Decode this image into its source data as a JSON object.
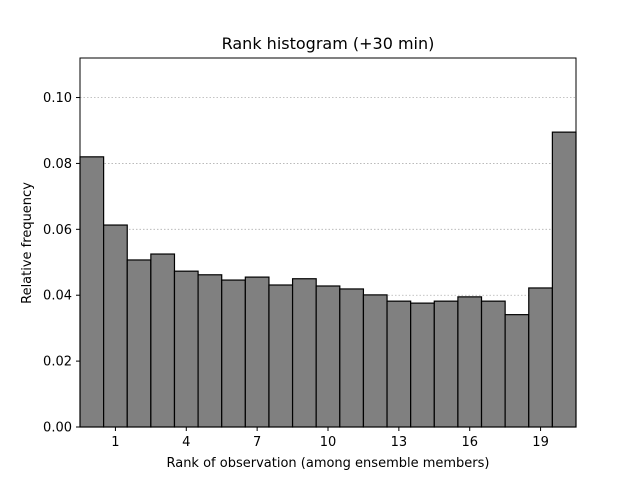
{
  "chart_data": {
    "type": "bar",
    "title": "Rank histogram (+30 min)",
    "xlabel": "Rank of observation (among ensemble members)",
    "ylabel": "Relative frequency",
    "x": [
      0,
      1,
      2,
      3,
      4,
      5,
      6,
      7,
      8,
      9,
      10,
      11,
      12,
      13,
      14,
      15,
      16,
      17,
      18,
      19,
      20
    ],
    "values": [
      0.082,
      0.0613,
      0.0507,
      0.0525,
      0.0473,
      0.0462,
      0.0446,
      0.0455,
      0.0431,
      0.045,
      0.0428,
      0.0419,
      0.0401,
      0.0382,
      0.0376,
      0.0382,
      0.0395,
      0.0382,
      0.0341,
      0.0422,
      0.0895
    ],
    "xlim": [
      -0.5,
      20.5
    ],
    "ylim": [
      0,
      0.112
    ],
    "xticks": [
      1,
      4,
      7,
      10,
      13,
      16,
      19
    ],
    "xtick_labels": [
      "1",
      "4",
      "7",
      "10",
      "13",
      "16",
      "19"
    ],
    "yticks": [
      0,
      0.02,
      0.04,
      0.06,
      0.08,
      0.1
    ],
    "ytick_labels": [
      "0.00",
      "0.02",
      "0.04",
      "0.06",
      "0.08",
      "0.10"
    ],
    "grid": "y-dotted",
    "bar_color": "#808080",
    "edge_color": "#000000",
    "grid_color": "#b0b0b0"
  }
}
